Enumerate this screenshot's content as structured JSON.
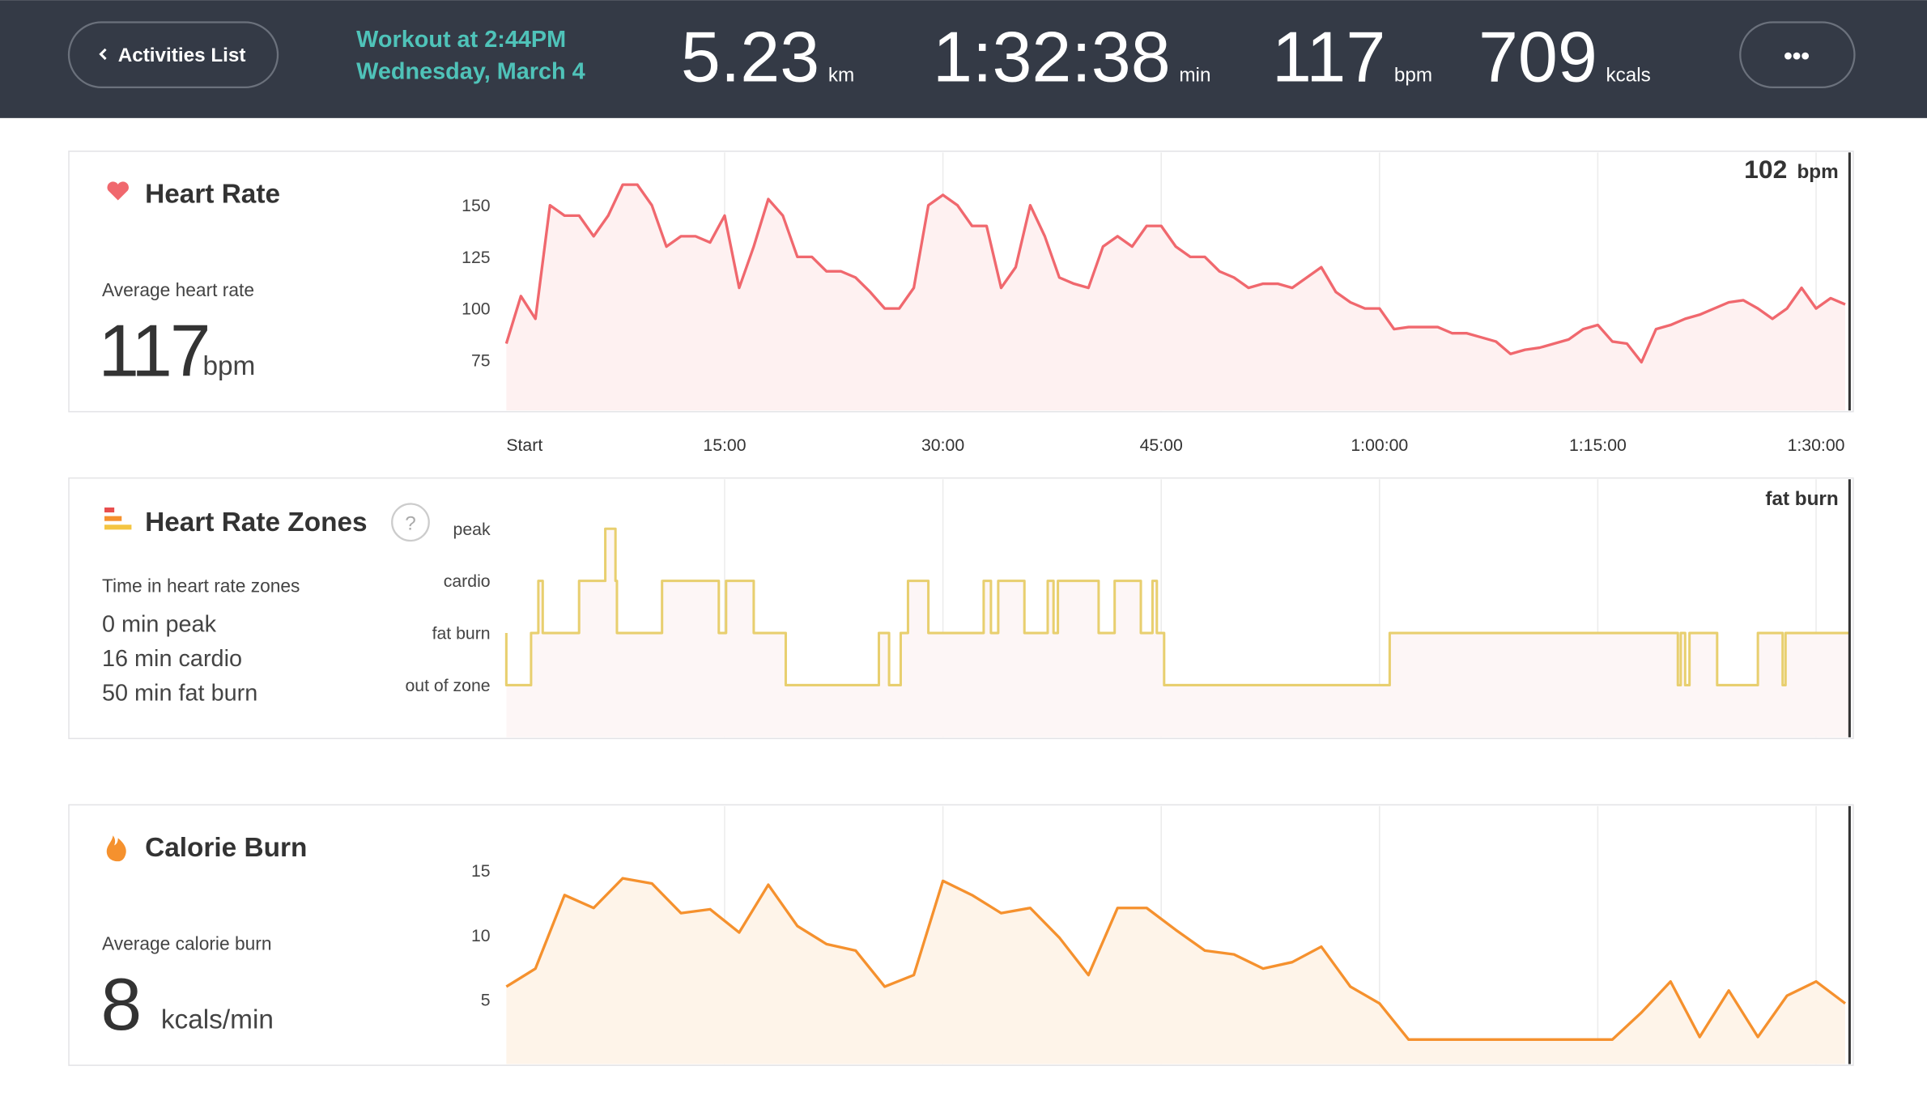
{
  "header": {
    "back_button": "Activities List",
    "workout_title": "Workout at 2:44PM",
    "workout_date": "Wednesday, March 4",
    "stats": [
      {
        "value": "5.23",
        "unit": "km"
      },
      {
        "value": "1:32:38",
        "unit": "min"
      },
      {
        "value": "117",
        "unit": "bpm"
      },
      {
        "value": "709",
        "unit": "kcals"
      }
    ],
    "menu": "•••"
  },
  "chart_data": [
    {
      "type": "line",
      "title": "Heart Rate",
      "subtitle": "Average heart rate",
      "average": "117",
      "average_unit": "bpm",
      "current_value": "102",
      "current_unit": "bpm",
      "color": "#f0686e",
      "fill": "#fef1f1",
      "xlim": [
        0,
        92.3
      ],
      "xticks": [
        {
          "value": 0,
          "label": "Start"
        },
        {
          "value": 15,
          "label": "15:00"
        },
        {
          "value": 30,
          "label": "30:00"
        },
        {
          "value": 45,
          "label": "45:00"
        },
        {
          "value": 60,
          "label": "1:00:00"
        },
        {
          "value": 75,
          "label": "1:15:00"
        },
        {
          "value": 90,
          "label": "1:30:00"
        }
      ],
      "ylim": [
        50.6,
        175.6
      ],
      "yticks": [
        75,
        100,
        125,
        150
      ],
      "x": [
        0,
        1,
        2,
        3,
        4,
        5,
        6,
        7,
        8,
        9,
        10,
        11,
        12,
        13,
        14,
        15,
        16,
        17,
        18,
        19,
        20,
        21,
        22,
        23,
        24,
        25,
        26,
        27,
        28,
        29,
        30,
        31,
        32,
        33,
        34,
        35,
        36,
        37,
        38,
        39,
        40,
        41,
        42,
        43,
        44,
        45,
        46,
        47,
        48,
        49,
        50,
        51,
        52,
        53,
        54,
        55,
        56,
        57,
        58,
        59,
        60,
        61,
        62,
        63,
        64,
        65,
        66,
        67,
        68,
        69,
        70,
        71,
        72,
        73,
        74,
        75,
        76,
        77,
        78,
        79,
        80,
        81,
        82,
        83,
        84,
        85,
        86,
        87,
        88,
        89,
        90,
        91,
        92
      ],
      "values": [
        83,
        106,
        95,
        150,
        145,
        145,
        135,
        145,
        160,
        160,
        150,
        130,
        135,
        135,
        132,
        145,
        110,
        130,
        153,
        145,
        125,
        125,
        118,
        118,
        115,
        108,
        100,
        100,
        110,
        150,
        155,
        150,
        140,
        140,
        110,
        120,
        150,
        135,
        115,
        112,
        110,
        130,
        135,
        130,
        140,
        140,
        130,
        125,
        125,
        118,
        115,
        110,
        112,
        112,
        110,
        115,
        120,
        108,
        103,
        100,
        100,
        90,
        91,
        91,
        91,
        88,
        88,
        86,
        84,
        78,
        80,
        81,
        83,
        85,
        90,
        92,
        84,
        83,
        74,
        90,
        92,
        95,
        97,
        100,
        103,
        104,
        100,
        95,
        100,
        110,
        100,
        105,
        102
      ]
    },
    {
      "type": "step",
      "title": "Heart Rate Zones",
      "help": "?",
      "subtitle": "Time in heart rate zones",
      "summary": [
        "0 min peak",
        "16 min cardio",
        "50 min fat burn"
      ],
      "current_value": "fat burn",
      "color": "#e8cf6f",
      "fill": "#fdf6f6",
      "ylim": [
        -1,
        3.95
      ],
      "yticks": [
        {
          "value": 0,
          "label": "out of zone"
        },
        {
          "value": 1,
          "label": "fat burn"
        },
        {
          "value": 2,
          "label": "cardio"
        },
        {
          "value": 3,
          "label": "peak"
        }
      ],
      "x": [
        0,
        1.7,
        2.2,
        2.5,
        5,
        6.8,
        7.5,
        7.6,
        10.7,
        14.6,
        15.1,
        17,
        19.2,
        25.6,
        26.3,
        27.1,
        27.6,
        29,
        32.8,
        33.3,
        33.8,
        35.6,
        37.2,
        37.6,
        37.9,
        40.7,
        41.8,
        43.6,
        44.4,
        44.7,
        45.2,
        60.7,
        80.5,
        80.7,
        81,
        81.3,
        83.2,
        86,
        87.7,
        87.9,
        88.2,
        92.3
      ],
      "values": [
        1,
        0,
        1,
        2,
        1,
        2,
        3,
        2,
        1,
        2,
        1,
        2,
        1,
        0,
        1,
        0,
        1,
        2,
        1,
        2,
        1,
        2,
        1,
        2,
        1,
        2,
        1,
        2,
        1,
        2,
        1,
        0,
        1,
        0,
        1,
        0,
        1,
        0,
        1,
        0,
        1,
        1
      ]
    },
    {
      "type": "line",
      "title": "Calorie Burn",
      "subtitle": "Average calorie burn",
      "average": "8",
      "average_unit": "kcals/min",
      "color": "#f5912e",
      "fill": "#fef4e9",
      "ylim": [
        0,
        20
      ],
      "yticks": [
        5,
        10,
        15
      ],
      "x": [
        0,
        2,
        4,
        6,
        8,
        10,
        12,
        14,
        16,
        18,
        20,
        22,
        24,
        26,
        28,
        30,
        32,
        34,
        36,
        38,
        40,
        42,
        44,
        46,
        48,
        50,
        52,
        54,
        56,
        58,
        60,
        62,
        64,
        66,
        68,
        70,
        72,
        74,
        76,
        78,
        80,
        82,
        84,
        86,
        88,
        90,
        92
      ],
      "values": [
        6,
        7.4,
        13.1,
        12.1,
        14.4,
        14,
        11.7,
        12,
        10.2,
        13.9,
        10.7,
        9.3,
        8.8,
        6,
        6.9,
        14.2,
        13.1,
        11.7,
        12.1,
        9.8,
        6.9,
        12.1,
        12.1,
        10.4,
        8.8,
        8.5,
        7.4,
        7.9,
        9.1,
        6,
        4.7,
        1.9,
        1.9,
        1.9,
        1.9,
        1.9,
        1.9,
        1.9,
        1.9,
        4,
        6.4,
        2.1,
        5.7,
        2.1,
        5.3,
        6.4,
        4.7
      ]
    }
  ]
}
